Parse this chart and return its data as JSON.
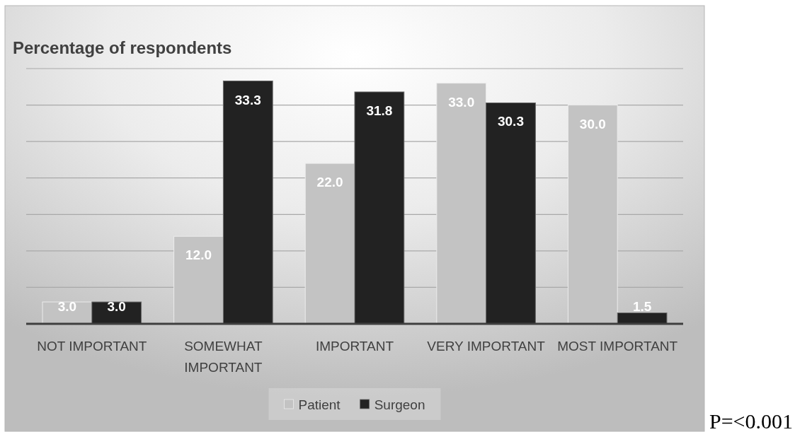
{
  "chart_data": {
    "type": "bar",
    "title": "Percentage of respondents",
    "categories": [
      "NOT IMPORTANT",
      "SOMEWHAT IMPORTANT",
      "IMPORTANT",
      "VERY IMPORTANT",
      "MOST IMPORTANT"
    ],
    "series": [
      {
        "name": "Patient",
        "color": "#c3c3c3",
        "values": [
          3.0,
          12.0,
          22.0,
          33.0,
          30.0
        ],
        "value_labels": [
          "3.0",
          "12.0",
          "22.0",
          "33.0",
          "30.0"
        ]
      },
      {
        "name": "Surgeon",
        "color": "#222222",
        "values": [
          3.0,
          33.3,
          31.8,
          30.3,
          1.5
        ],
        "value_labels": [
          "3.0",
          "33.3",
          "31.8",
          "30.3",
          "1.5"
        ]
      }
    ],
    "ylim": [
      0,
      35
    ],
    "yticks": [
      {
        "value": 0,
        "label": null
      },
      {
        "value": 5,
        "label": null
      },
      {
        "value": 10,
        "label": null
      },
      {
        "value": 15,
        "label": null
      },
      {
        "value": 20,
        "label": null
      },
      {
        "value": 25,
        "label": null
      },
      {
        "value": 30,
        "label": null
      },
      {
        "value": 35,
        "label": null
      }
    ],
    "tick_labels": "x",
    "grid": "y",
    "legend": "bottom",
    "annotations": [
      "P=<0.001"
    ]
  }
}
